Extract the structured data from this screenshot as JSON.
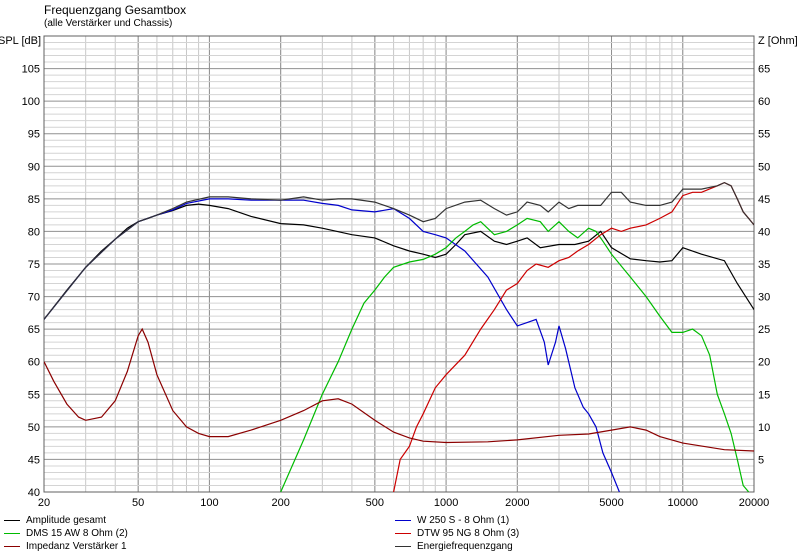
{
  "chart_data": {
    "type": "line",
    "title": "Frequenzgang Gesamtbox",
    "subtitle": "(alle Verstärker und Chassis)",
    "left_axis_label": "SPL [dB]",
    "right_axis_label": "Z [Ohm]",
    "x_scale": "log",
    "xlim": [
      20,
      20000
    ],
    "ylim_left": [
      40,
      110
    ],
    "ylim_right": [
      0,
      70
    ],
    "x_ticks": [
      {
        "value": 20,
        "label": "20"
      },
      {
        "value": 50,
        "label": "50"
      },
      {
        "value": 100,
        "label": "100"
      },
      {
        "value": 200,
        "label": "200"
      },
      {
        "value": 500,
        "label": "500"
      },
      {
        "value": 1000,
        "label": "1000"
      },
      {
        "value": 2000,
        "label": "2000"
      },
      {
        "value": 5000,
        "label": "5000"
      },
      {
        "value": 10000,
        "label": "10000"
      },
      {
        "value": 20000,
        "label": "20000"
      }
    ],
    "y_left_ticks": [
      {
        "value": 40,
        "label": "40"
      },
      {
        "value": 45,
        "label": "45"
      },
      {
        "value": 50,
        "label": "50"
      },
      {
        "value": 55,
        "label": "55"
      },
      {
        "value": 60,
        "label": "60"
      },
      {
        "value": 65,
        "label": "65"
      },
      {
        "value": 70,
        "label": "70"
      },
      {
        "value": 75,
        "label": "75"
      },
      {
        "value": 80,
        "label": "80"
      },
      {
        "value": 85,
        "label": "85"
      },
      {
        "value": 90,
        "label": "90"
      },
      {
        "value": 95,
        "label": "95"
      },
      {
        "value": 100,
        "label": "100"
      },
      {
        "value": 105,
        "label": "105"
      }
    ],
    "y_right_ticks": [
      {
        "value": 5,
        "label": "5"
      },
      {
        "value": 10,
        "label": "10"
      },
      {
        "value": 15,
        "label": "15"
      },
      {
        "value": 20,
        "label": "20"
      },
      {
        "value": 25,
        "label": "25"
      },
      {
        "value": 30,
        "label": "30"
      },
      {
        "value": 35,
        "label": "35"
      },
      {
        "value": 40,
        "label": "40"
      },
      {
        "value": 45,
        "label": "45"
      },
      {
        "value": 50,
        "label": "50"
      },
      {
        "value": 55,
        "label": "55"
      },
      {
        "value": 60,
        "label": "60"
      },
      {
        "value": 65,
        "label": "65"
      }
    ],
    "grid": true,
    "legend_position": "bottom",
    "series": [
      {
        "name": "Amplitude gesamt",
        "color": "#000000",
        "axis": "left",
        "points": [
          [
            20,
            66.5
          ],
          [
            25,
            71
          ],
          [
            30,
            74.5
          ],
          [
            35,
            77
          ],
          [
            40,
            78.8
          ],
          [
            45,
            80.5
          ],
          [
            50,
            81.5
          ],
          [
            55,
            82
          ],
          [
            60,
            82.5
          ],
          [
            70,
            83.2
          ],
          [
            80,
            84
          ],
          [
            90,
            84.2
          ],
          [
            100,
            84
          ],
          [
            120,
            83.5
          ],
          [
            150,
            82.3
          ],
          [
            200,
            81.2
          ],
          [
            250,
            81
          ],
          [
            300,
            80.5
          ],
          [
            400,
            79.5
          ],
          [
            500,
            79
          ],
          [
            600,
            77.8
          ],
          [
            700,
            77
          ],
          [
            800,
            76.5
          ],
          [
            900,
            76
          ],
          [
            1000,
            76.5
          ],
          [
            1100,
            78
          ],
          [
            1200,
            79.5
          ],
          [
            1400,
            80
          ],
          [
            1600,
            78.5
          ],
          [
            1800,
            78
          ],
          [
            2000,
            78.5
          ],
          [
            2200,
            79
          ],
          [
            2500,
            77.5
          ],
          [
            3000,
            78
          ],
          [
            3500,
            78
          ],
          [
            4000,
            78.5
          ],
          [
            4500,
            80
          ],
          [
            5000,
            77.5
          ],
          [
            6000,
            75.8
          ],
          [
            7000,
            75.5
          ],
          [
            8000,
            75.3
          ],
          [
            9000,
            75.5
          ],
          [
            10000,
            77.5
          ],
          [
            12000,
            76.5
          ],
          [
            15000,
            75.5
          ],
          [
            17000,
            72
          ],
          [
            20000,
            68
          ]
        ]
      },
      {
        "name": "W 250 S - 8 Ohm (1)",
        "color": "#0000cc",
        "axis": "left",
        "points": [
          [
            20,
            66.5
          ],
          [
            30,
            74.5
          ],
          [
            40,
            78.8
          ],
          [
            50,
            81.5
          ],
          [
            60,
            82.5
          ],
          [
            70,
            83.3
          ],
          [
            80,
            84.3
          ],
          [
            100,
            85
          ],
          [
            120,
            85
          ],
          [
            150,
            84.8
          ],
          [
            200,
            84.8
          ],
          [
            250,
            84.8
          ],
          [
            300,
            84.3
          ],
          [
            350,
            84
          ],
          [
            400,
            83.3
          ],
          [
            500,
            83
          ],
          [
            600,
            83.5
          ],
          [
            700,
            82
          ],
          [
            800,
            80
          ],
          [
            900,
            79.5
          ],
          [
            1000,
            79
          ],
          [
            1200,
            77
          ],
          [
            1500,
            73
          ],
          [
            1800,
            68
          ],
          [
            2000,
            65.5
          ],
          [
            2200,
            66
          ],
          [
            2400,
            66.5
          ],
          [
            2600,
            63
          ],
          [
            2700,
            59.5
          ],
          [
            2900,
            63
          ],
          [
            3000,
            65.5
          ],
          [
            3200,
            62
          ],
          [
            3500,
            56
          ],
          [
            3800,
            53
          ],
          [
            4000,
            52
          ],
          [
            4300,
            50
          ],
          [
            4600,
            46
          ],
          [
            5000,
            43
          ],
          [
            5400,
            40
          ]
        ]
      },
      {
        "name": "DMS 15 AW 8 Ohm (2)",
        "color": "#00bb00",
        "axis": "left",
        "points": [
          [
            200,
            40
          ],
          [
            250,
            48
          ],
          [
            300,
            55
          ],
          [
            350,
            60
          ],
          [
            400,
            65
          ],
          [
            450,
            69
          ],
          [
            500,
            71
          ],
          [
            550,
            73
          ],
          [
            600,
            74.5
          ],
          [
            700,
            75.3
          ],
          [
            800,
            75.7
          ],
          [
            900,
            76.5
          ],
          [
            1000,
            77.5
          ],
          [
            1100,
            79
          ],
          [
            1200,
            80
          ],
          [
            1300,
            81
          ],
          [
            1400,
            81.5
          ],
          [
            1600,
            79.5
          ],
          [
            1800,
            80
          ],
          [
            2000,
            81
          ],
          [
            2200,
            82
          ],
          [
            2500,
            81.5
          ],
          [
            2700,
            80
          ],
          [
            3000,
            81.5
          ],
          [
            3300,
            80
          ],
          [
            3600,
            79
          ],
          [
            4000,
            80.5
          ],
          [
            4300,
            80
          ],
          [
            4600,
            78.5
          ],
          [
            5000,
            76.5
          ],
          [
            6000,
            73
          ],
          [
            7000,
            70
          ],
          [
            8000,
            67
          ],
          [
            9000,
            64.5
          ],
          [
            10000,
            64.5
          ],
          [
            11000,
            65
          ],
          [
            12000,
            64
          ],
          [
            13000,
            61
          ],
          [
            14000,
            55
          ],
          [
            15000,
            52
          ],
          [
            16000,
            49
          ],
          [
            17000,
            45
          ],
          [
            18000,
            41
          ],
          [
            19000,
            40
          ]
        ]
      },
      {
        "name": "DTW 95 NG 8 Ohm (3)",
        "color": "#cc0000",
        "axis": "left",
        "points": [
          [
            600,
            40
          ],
          [
            640,
            45
          ],
          [
            700,
            47
          ],
          [
            750,
            50
          ],
          [
            800,
            52
          ],
          [
            900,
            56
          ],
          [
            1000,
            58
          ],
          [
            1200,
            61
          ],
          [
            1400,
            65
          ],
          [
            1600,
            68
          ],
          [
            1800,
            71
          ],
          [
            2000,
            72
          ],
          [
            2200,
            74
          ],
          [
            2400,
            75
          ],
          [
            2700,
            74.5
          ],
          [
            3000,
            75.5
          ],
          [
            3300,
            76
          ],
          [
            3600,
            77
          ],
          [
            4000,
            78
          ],
          [
            4500,
            79.5
          ],
          [
            5000,
            80.5
          ],
          [
            5500,
            80
          ],
          [
            6000,
            80.5
          ],
          [
            7000,
            81
          ],
          [
            8000,
            82
          ],
          [
            9000,
            83
          ],
          [
            10000,
            85.5
          ],
          [
            11000,
            86
          ],
          [
            12000,
            86
          ],
          [
            14000,
            87
          ],
          [
            15000,
            87.5
          ],
          [
            16000,
            87
          ],
          [
            17000,
            85
          ],
          [
            18000,
            83
          ],
          [
            19000,
            82
          ],
          [
            20000,
            81
          ]
        ]
      },
      {
        "name": "Impedanz Verstärker 1",
        "color": "#8b0000",
        "axis": "right",
        "points": [
          [
            20,
            20
          ],
          [
            22,
            17
          ],
          [
            25,
            13.5
          ],
          [
            28,
            11.5
          ],
          [
            30,
            11
          ],
          [
            35,
            11.5
          ],
          [
            40,
            14
          ],
          [
            45,
            18.5
          ],
          [
            50,
            24
          ],
          [
            52,
            25
          ],
          [
            55,
            23
          ],
          [
            60,
            18
          ],
          [
            70,
            12.5
          ],
          [
            80,
            10
          ],
          [
            90,
            9
          ],
          [
            100,
            8.5
          ],
          [
            120,
            8.5
          ],
          [
            150,
            9.5
          ],
          [
            200,
            11
          ],
          [
            250,
            12.5
          ],
          [
            300,
            14
          ],
          [
            350,
            14.3
          ],
          [
            400,
            13.5
          ],
          [
            500,
            11
          ],
          [
            600,
            9.2
          ],
          [
            700,
            8.3
          ],
          [
            800,
            7.8
          ],
          [
            1000,
            7.6
          ],
          [
            1500,
            7.7
          ],
          [
            2000,
            8
          ],
          [
            3000,
            8.7
          ],
          [
            4000,
            8.9
          ],
          [
            5000,
            9.5
          ],
          [
            6000,
            10
          ],
          [
            7000,
            9.5
          ],
          [
            8000,
            8.5
          ],
          [
            10000,
            7.5
          ],
          [
            15000,
            6.5
          ],
          [
            20000,
            6.3
          ]
        ]
      },
      {
        "name": "Energiefrequenzgang",
        "color": "#333333",
        "axis": "left",
        "points": [
          [
            20,
            66.5
          ],
          [
            30,
            74.5
          ],
          [
            40,
            78.8
          ],
          [
            50,
            81.5
          ],
          [
            60,
            82.5
          ],
          [
            70,
            83.5
          ],
          [
            80,
            84.5
          ],
          [
            100,
            85.3
          ],
          [
            120,
            85.3
          ],
          [
            150,
            85
          ],
          [
            200,
            84.8
          ],
          [
            250,
            85.3
          ],
          [
            300,
            84.8
          ],
          [
            350,
            85
          ],
          [
            400,
            85
          ],
          [
            500,
            84.5
          ],
          [
            600,
            83.5
          ],
          [
            700,
            82.5
          ],
          [
            800,
            81.5
          ],
          [
            900,
            82
          ],
          [
            1000,
            83.5
          ],
          [
            1200,
            84.5
          ],
          [
            1400,
            84.8
          ],
          [
            1600,
            83.5
          ],
          [
            1800,
            82.5
          ],
          [
            2000,
            83
          ],
          [
            2200,
            84.5
          ],
          [
            2500,
            84
          ],
          [
            2700,
            83
          ],
          [
            3000,
            84.5
          ],
          [
            3300,
            83.5
          ],
          [
            3600,
            84
          ],
          [
            4000,
            84
          ],
          [
            4500,
            84
          ],
          [
            5000,
            86
          ],
          [
            5500,
            86
          ],
          [
            6000,
            84.5
          ],
          [
            7000,
            84
          ],
          [
            8000,
            84
          ],
          [
            9000,
            84.5
          ],
          [
            10000,
            86.5
          ],
          [
            11000,
            86.5
          ],
          [
            12000,
            86.5
          ],
          [
            14000,
            87
          ],
          [
            15000,
            87.5
          ],
          [
            16000,
            87
          ],
          [
            17000,
            85
          ],
          [
            18000,
            83
          ],
          [
            20000,
            81
          ]
        ]
      }
    ]
  }
}
